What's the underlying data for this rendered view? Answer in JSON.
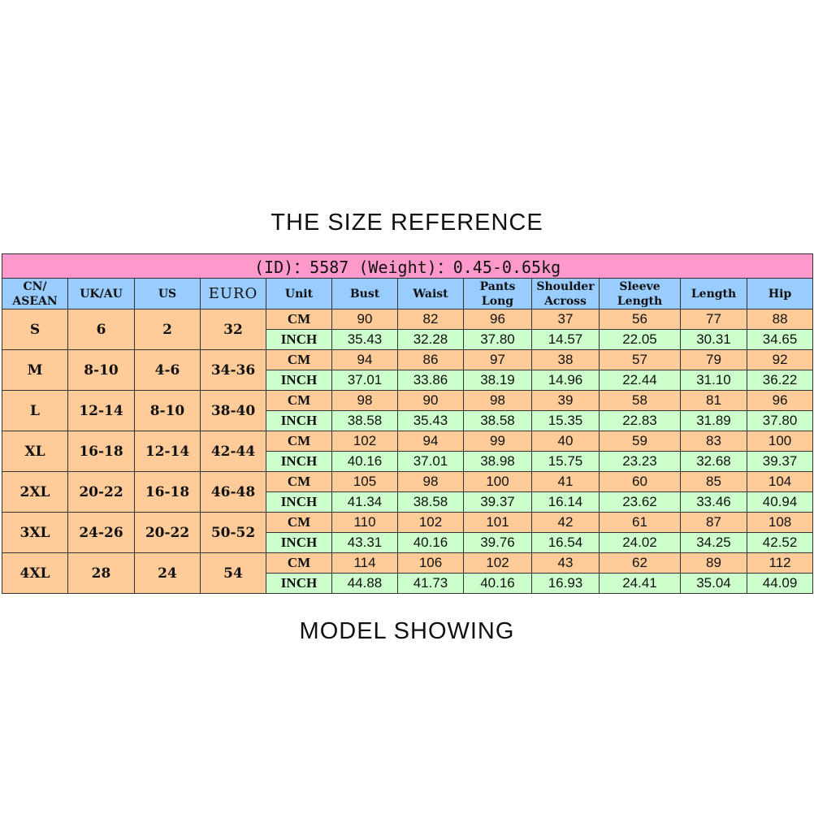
{
  "title": "THE SIZE REFERENCE",
  "footer": "MODEL SHOWING",
  "info_bar": "(ID)：5587 (Weight)：0.45-0.65kg",
  "colors": {
    "info_bar": "#ff99cc",
    "header": "#99ccff",
    "cm_row": "#ffcc99",
    "inch_row": "#ccffcc"
  },
  "headers": [
    "CN/ ASEAN",
    "UK/AU",
    "US",
    "EURO",
    "Unit",
    "Bust",
    "Waist",
    "Pants Long",
    "Shoulder Across",
    "Sleeve Length",
    "Length",
    "Hip"
  ],
  "rows": [
    {
      "cn": "S",
      "uk": "6",
      "us": "2",
      "euro": "32",
      "cm": [
        "90",
        "82",
        "96",
        "37",
        "56",
        "77",
        "88"
      ],
      "inch": [
        "35.43",
        "32.28",
        "37.80",
        "14.57",
        "22.05",
        "30.31",
        "34.65"
      ]
    },
    {
      "cn": "M",
      "uk": "8-10",
      "us": "4-6",
      "euro": "34-36",
      "cm": [
        "94",
        "86",
        "97",
        "38",
        "57",
        "79",
        "92"
      ],
      "inch": [
        "37.01",
        "33.86",
        "38.19",
        "14.96",
        "22.44",
        "31.10",
        "36.22"
      ]
    },
    {
      "cn": "L",
      "uk": "12-14",
      "us": "8-10",
      "euro": "38-40",
      "cm": [
        "98",
        "90",
        "98",
        "39",
        "58",
        "81",
        "96"
      ],
      "inch": [
        "38.58",
        "35.43",
        "38.58",
        "15.35",
        "22.83",
        "31.89",
        "37.80"
      ]
    },
    {
      "cn": "XL",
      "uk": "16-18",
      "us": "12-14",
      "euro": "42-44",
      "cm": [
        "102",
        "94",
        "99",
        "40",
        "59",
        "83",
        "100"
      ],
      "inch": [
        "40.16",
        "37.01",
        "38.98",
        "15.75",
        "23.23",
        "32.68",
        "39.37"
      ]
    },
    {
      "cn": "2XL",
      "uk": "20-22",
      "us": "16-18",
      "euro": "46-48",
      "cm": [
        "105",
        "98",
        "100",
        "41",
        "60",
        "85",
        "104"
      ],
      "inch": [
        "41.34",
        "38.58",
        "39.37",
        "16.14",
        "23.62",
        "33.46",
        "40.94"
      ]
    },
    {
      "cn": "3XL",
      "uk": "24-26",
      "us": "20-22",
      "euro": "50-52",
      "cm": [
        "110",
        "102",
        "101",
        "42",
        "61",
        "87",
        "108"
      ],
      "inch": [
        "43.31",
        "40.16",
        "39.76",
        "16.54",
        "24.02",
        "34.25",
        "42.52"
      ]
    },
    {
      "cn": "4XL",
      "uk": "28",
      "us": "24",
      "euro": "54",
      "cm": [
        "114",
        "106",
        "102",
        "43",
        "62",
        "89",
        "112"
      ],
      "inch": [
        "44.88",
        "41.73",
        "40.16",
        "16.93",
        "24.41",
        "35.04",
        "44.09"
      ]
    }
  ],
  "units": {
    "cm": "CM",
    "inch": "INCH"
  }
}
